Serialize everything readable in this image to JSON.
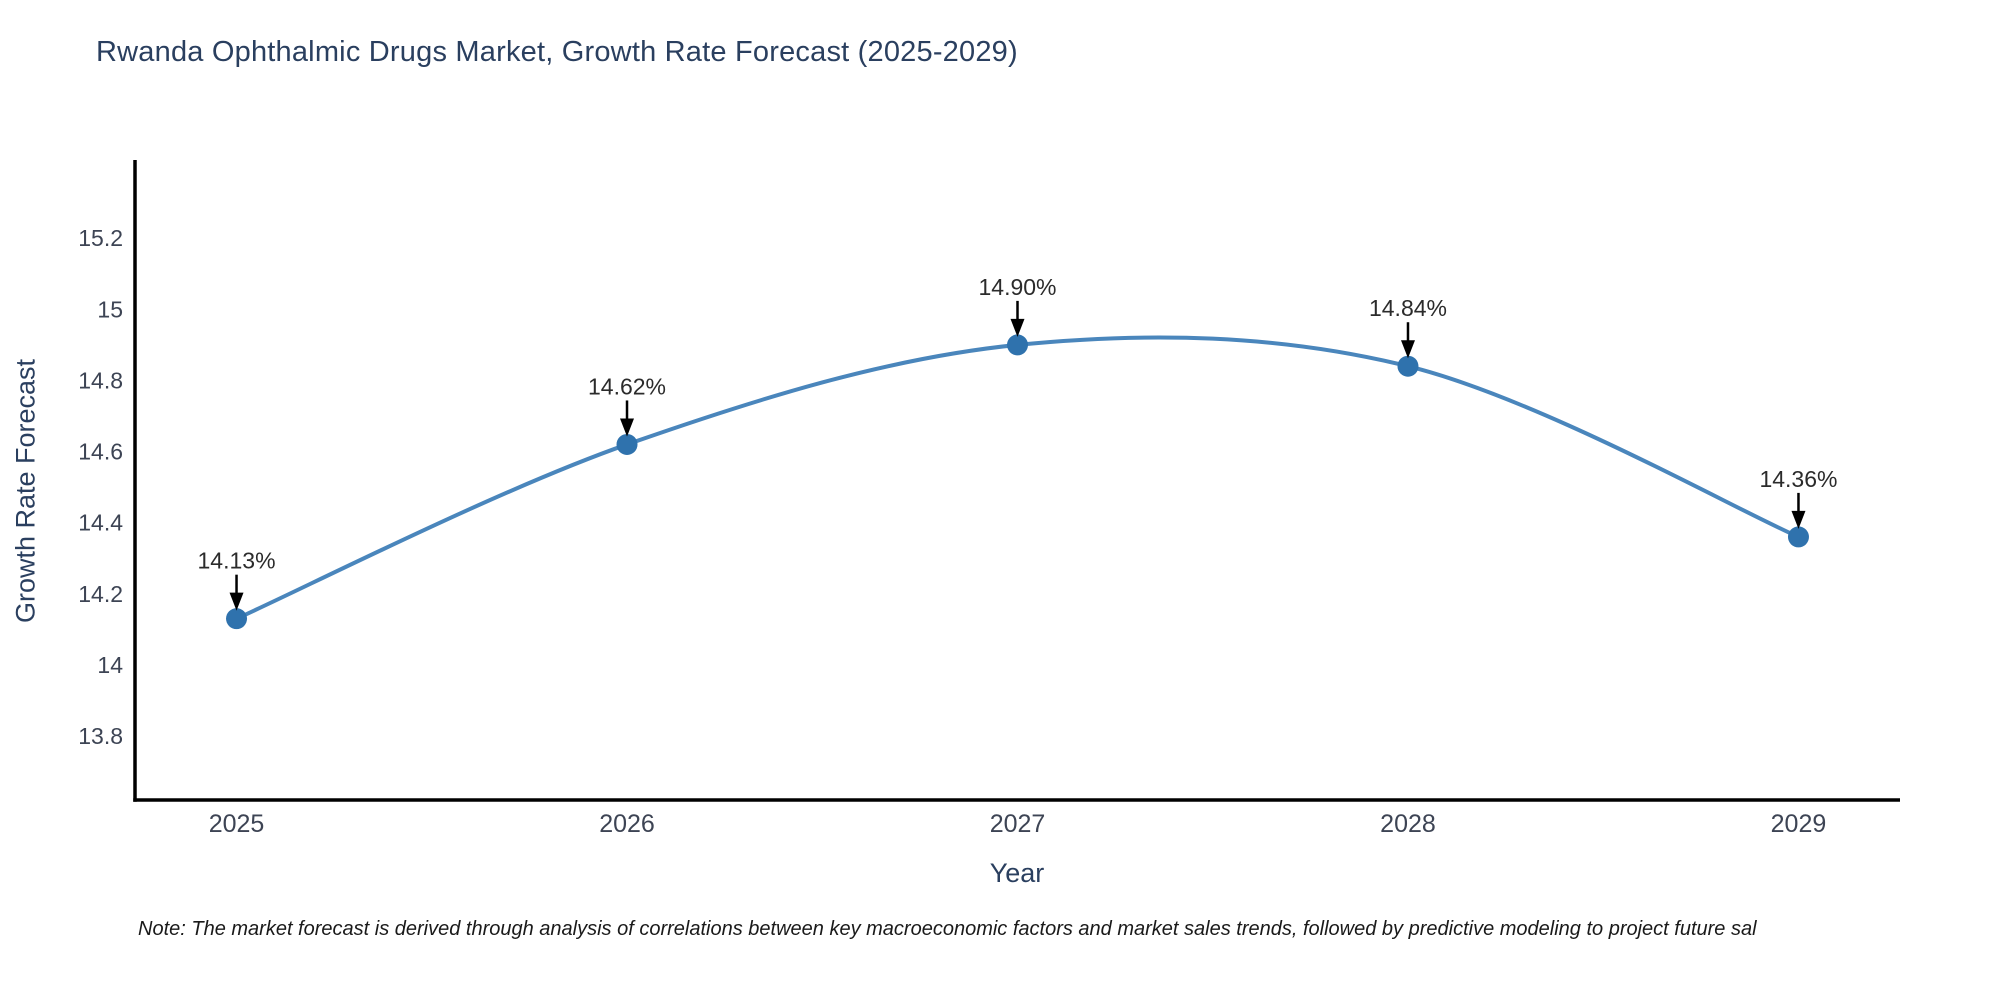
{
  "title": {
    "text": "Rwanda Ophthalmic Drugs Market, Growth Rate Forecast (2025-2029)"
  },
  "note": {
    "text": "Note: The market forecast is derived through analysis of correlations between key macroeconomic factors and market sales trends, followed by predictive modeling to project future sal"
  },
  "chart_data": {
    "type": "line",
    "title": "Rwanda Ophthalmic Drugs Market, Growth Rate Forecast (2025-2029)",
    "xlabel": "Year",
    "ylabel": "Growth Rate Forecast",
    "x": [
      2025,
      2026,
      2027,
      2028,
      2029
    ],
    "series": [
      {
        "name": "Growth Rate Forecast",
        "values": [
          14.13,
          14.62,
          14.9,
          14.84,
          14.36
        ]
      }
    ],
    "point_labels": [
      "14.13%",
      "14.62%",
      "14.90%",
      "14.84%",
      "14.36%"
    ],
    "xticks": [
      2025,
      2026,
      2027,
      2028,
      2029
    ],
    "yticks": [
      13.8,
      14,
      14.2,
      14.4,
      14.6,
      14.8,
      15,
      15.2
    ],
    "xlim": [
      2024.74,
      2029.26
    ],
    "ylim": [
      13.62,
      15.42
    ],
    "grid": false,
    "legend": "none",
    "line_shape": "spline",
    "colors": {
      "line": "#4a86bc",
      "marker": "#2f72ad",
      "axis": "#000000",
      "tick_label": "#3d4454",
      "title": "#2a3f5f",
      "annotation_text": "#2b2b2b",
      "annotation_arrow": "#000000",
      "background": "#ffffff"
    }
  }
}
